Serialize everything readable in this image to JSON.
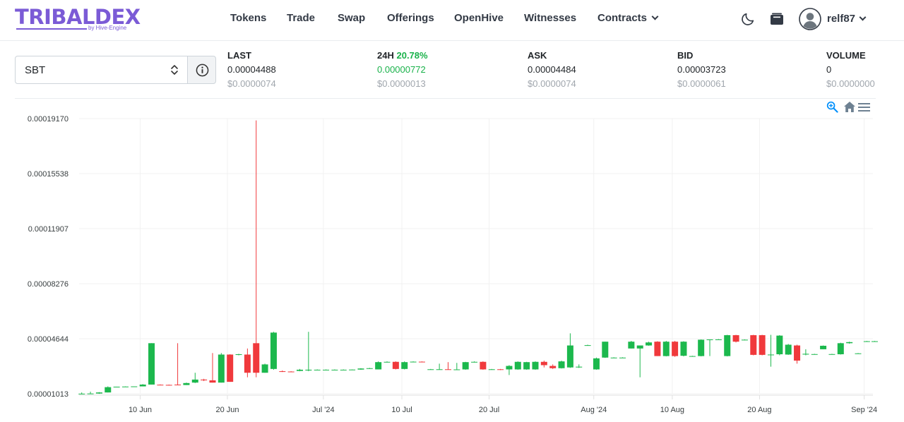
{
  "brand": {
    "name": "TRIBALDEX",
    "sub": "by Hive-Engine",
    "color": "#7b5bd6"
  },
  "nav": {
    "items": [
      "Tokens",
      "Trade",
      "Swap",
      "Offerings",
      "OpenHive",
      "Witnesses",
      "Contracts"
    ],
    "username": "relf87",
    "icons": [
      "moon-icon",
      "wallet-icon",
      "avatar-icon",
      "chevron-down-icon"
    ]
  },
  "token_select": {
    "value": "SBT"
  },
  "stats": {
    "last": {
      "label": "LAST",
      "value": "0.00004488",
      "usd": "$0.0000074"
    },
    "change": {
      "label": "24H",
      "pct": "20.78%",
      "value": "0.00000772",
      "usd": "$0.0000013"
    },
    "ask": {
      "label": "ASK",
      "value": "0.00004484",
      "usd": "$0.0000074"
    },
    "bid": {
      "label": "BID",
      "value": "0.00003723",
      "usd": "$0.0000061"
    },
    "volume": {
      "label": "VOLUME",
      "value": "0",
      "usd": "$0.0000000"
    }
  },
  "colors": {
    "up": "#1cb84d",
    "down": "#f0393c",
    "positive_text": "#19b24a",
    "grid": "#f1f1f1"
  },
  "chart_data": {
    "type": "candlestick",
    "y_ticks": [
      "0.00019170",
      "0.00015538",
      "0.00011907",
      "0.00008276",
      "0.00004644",
      "0.00001013"
    ],
    "y_tick_values": [
      0.0001917,
      0.00015538,
      0.00011907,
      8.276e-05,
      4.644e-05,
      1.013e-05
    ],
    "ylim": [
      1.013e-05,
      0.0001917
    ],
    "x_ticks": [
      {
        "label": "10 Jun",
        "day": 10
      },
      {
        "label": "20 Jun",
        "day": 20
      },
      {
        "label": "Jul '24",
        "day": 31
      },
      {
        "label": "10 Jul",
        "day": 40
      },
      {
        "label": "20 Jul",
        "day": 50
      },
      {
        "label": "Aug '24",
        "day": 62
      },
      {
        "label": "10 Aug",
        "day": 71
      },
      {
        "label": "20 Aug",
        "day": 81
      },
      {
        "label": "Sep '24",
        "day": 93
      }
    ],
    "day_range": [
      3,
      94
    ],
    "candles": [
      {
        "day": 3.3,
        "o": 1e-05,
        "h": 1.1e-05,
        "l": 1e-05,
        "c": 1.02e-05
      },
      {
        "day": 4.3,
        "o": 1.01e-05,
        "h": 1.15e-05,
        "l": 1.01e-05,
        "c": 1.03e-05
      },
      {
        "day": 5.3,
        "o": 1.03e-05,
        "h": 1.12e-05,
        "l": 1.01e-05,
        "c": 1.1e-05
      },
      {
        "day": 6.3,
        "o": 1.1e-05,
        "h": 1.5e-05,
        "l": 1.1e-05,
        "c": 1.45e-05
      },
      {
        "day": 7.3,
        "o": 1.45e-05,
        "h": 1.48e-05,
        "l": 1.45e-05,
        "c": 1.48e-05
      },
      {
        "day": 8.3,
        "o": 1.48e-05,
        "h": 1.5e-05,
        "l": 1.47e-05,
        "c": 1.49e-05
      },
      {
        "day": 9.3,
        "o": 1.49e-05,
        "h": 1.5e-05,
        "l": 1.48e-05,
        "c": 1.5e-05
      },
      {
        "day": 10.3,
        "o": 1.5e-05,
        "h": 1.65e-05,
        "l": 1.5e-05,
        "c": 1.62e-05
      },
      {
        "day": 11.3,
        "o": 1.62e-05,
        "h": 4.35e-05,
        "l": 1.62e-05,
        "c": 4.35e-05
      },
      {
        "day": 12.3,
        "o": 1.61e-05,
        "h": 1.63e-05,
        "l": 1.58e-05,
        "c": 1.6e-05
      },
      {
        "day": 13.3,
        "o": 1.6e-05,
        "h": 1.62e-05,
        "l": 1.58e-05,
        "c": 1.59e-05
      },
      {
        "day": 14.3,
        "o": 1.62e-05,
        "h": 4.35e-05,
        "l": 1.58e-05,
        "c": 1.59e-05
      },
      {
        "day": 15.3,
        "o": 1.59e-05,
        "h": 1.75e-05,
        "l": 1.59e-05,
        "c": 1.72e-05
      },
      {
        "day": 16.3,
        "o": 1.75e-05,
        "h": 2.4e-05,
        "l": 1.72e-05,
        "c": 1.95e-05
      },
      {
        "day": 17.3,
        "o": 1.95e-05,
        "h": 2e-05,
        "l": 1.85e-05,
        "c": 1.9e-05
      },
      {
        "day": 18.3,
        "o": 1.9e-05,
        "h": 3.7e-05,
        "l": 1.75e-05,
        "c": 1.75e-05
      },
      {
        "day": 19.3,
        "o": 1.75e-05,
        "h": 3.7e-05,
        "l": 1.75e-05,
        "c": 3.6e-05
      },
      {
        "day": 20.3,
        "o": 3.6e-05,
        "h": 3.62e-05,
        "l": 1.8e-05,
        "c": 1.8e-05
      },
      {
        "day": 21.3,
        "o": 3.6e-05,
        "h": 3.65e-05,
        "l": 3.55e-05,
        "c": 3.62e-05
      },
      {
        "day": 22.3,
        "o": 3.6e-05,
        "h": 4e-05,
        "l": 2.1e-05,
        "c": 2.4e-05
      },
      {
        "day": 23.3,
        "o": 4.35e-05,
        "h": 0.0001905,
        "l": 2.1e-05,
        "c": 2.4e-05
      },
      {
        "day": 24.3,
        "o": 2.4e-05,
        "h": 3e-05,
        "l": 2.4e-05,
        "c": 2.95e-05
      },
      {
        "day": 25.3,
        "o": 2.65e-05,
        "h": 5.1e-05,
        "l": 2.6e-05,
        "c": 5.05e-05
      },
      {
        "day": 26.3,
        "o": 2.5e-05,
        "h": 2.55e-05,
        "l": 2.45e-05,
        "c": 2.48e-05
      },
      {
        "day": 27.3,
        "o": 2.48e-05,
        "h": 2.5e-05,
        "l": 2.45e-05,
        "c": 2.47e-05
      },
      {
        "day": 28.3,
        "o": 2.52e-05,
        "h": 2.65e-05,
        "l": 2.5e-05,
        "c": 2.6e-05
      },
      {
        "day": 29.3,
        "o": 2.55e-05,
        "h": 5.1e-05,
        "l": 2.5e-05,
        "c": 2.6e-05
      },
      {
        "day": 30.3,
        "o": 2.6e-05,
        "h": 2.62e-05,
        "l": 2.58e-05,
        "c": 2.6e-05
      },
      {
        "day": 31.3,
        "o": 2.6e-05,
        "h": 2.62e-05,
        "l": 2.58e-05,
        "c": 2.6e-05
      },
      {
        "day": 32.3,
        "o": 2.6e-05,
        "h": 2.62e-05,
        "l": 2.58e-05,
        "c": 2.6e-05
      },
      {
        "day": 33.3,
        "o": 2.6e-05,
        "h": 2.62e-05,
        "l": 2.58e-05,
        "c": 2.6e-05
      },
      {
        "day": 34.3,
        "o": 2.6e-05,
        "h": 2.62e-05,
        "l": 2.58e-05,
        "c": 2.61e-05
      },
      {
        "day": 35.3,
        "o": 2.61e-05,
        "h": 2.7e-05,
        "l": 2.6e-05,
        "c": 2.68e-05
      },
      {
        "day": 36.3,
        "o": 2.68e-05,
        "h": 2.72e-05,
        "l": 2.65e-05,
        "c": 2.7e-05
      },
      {
        "day": 37.3,
        "o": 2.62e-05,
        "h": 3.15e-05,
        "l": 2.62e-05,
        "c": 3.1e-05
      },
      {
        "day": 38.3,
        "o": 3.12e-05,
        "h": 3.15e-05,
        "l": 3.08e-05,
        "c": 3.12e-05
      },
      {
        "day": 39.3,
        "o": 3.12e-05,
        "h": 3.15e-05,
        "l": 2.62e-05,
        "c": 2.65e-05
      },
      {
        "day": 40.3,
        "o": 2.65e-05,
        "h": 3.15e-05,
        "l": 2.62e-05,
        "c": 3.1e-05
      },
      {
        "day": 41.3,
        "o": 3.12e-05,
        "h": 3.15e-05,
        "l": 3.1e-05,
        "c": 3.13e-05
      },
      {
        "day": 42.3,
        "o": 3.13e-05,
        "h": 3.15e-05,
        "l": 3.1e-05,
        "c": 3.12e-05
      },
      {
        "day": 43.3,
        "o": 2.62e-05,
        "h": 2.65e-05,
        "l": 2.6e-05,
        "c": 2.63e-05
      },
      {
        "day": 44.3,
        "o": 2.63e-05,
        "h": 3e-05,
        "l": 2.6e-05,
        "c": 2.63e-05
      },
      {
        "day": 45.3,
        "o": 2.63e-05,
        "h": 3.1e-05,
        "l": 2.6e-05,
        "c": 2.62e-05
      },
      {
        "day": 46.3,
        "o": 2.62e-05,
        "h": 3.05e-05,
        "l": 2.6e-05,
        "c": 2.62e-05
      },
      {
        "day": 47.3,
        "o": 2.62e-05,
        "h": 3.12e-05,
        "l": 2.6e-05,
        "c": 3.1e-05
      },
      {
        "day": 48.3,
        "o": 3.1e-05,
        "h": 3.15e-05,
        "l": 3.08e-05,
        "c": 3.12e-05
      },
      {
        "day": 49.3,
        "o": 3.12e-05,
        "h": 3.15e-05,
        "l": 2.6e-05,
        "c": 2.62e-05
      },
      {
        "day": 50.3,
        "o": 2.62e-05,
        "h": 2.65e-05,
        "l": 2.6e-05,
        "c": 2.63e-05
      },
      {
        "day": 51.3,
        "o": 2.63e-05,
        "h": 2.65e-05,
        "l": 2.58e-05,
        "c": 2.62e-05
      },
      {
        "day": 52.3,
        "o": 2.62e-05,
        "h": 2.9e-05,
        "l": 2.25e-05,
        "c": 2.85e-05
      },
      {
        "day": 53.3,
        "o": 2.62e-05,
        "h": 3.15e-05,
        "l": 2.6e-05,
        "c": 3.12e-05
      },
      {
        "day": 54.3,
        "o": 2.62e-05,
        "h": 3.12e-05,
        "l": 2.6e-05,
        "c": 3.1e-05
      },
      {
        "day": 55.3,
        "o": 2.62e-05,
        "h": 3.15e-05,
        "l": 2.6e-05,
        "c": 3.12e-05
      },
      {
        "day": 56.3,
        "o": 3.12e-05,
        "h": 3.2e-05,
        "l": 2.75e-05,
        "c": 2.9e-05
      },
      {
        "day": 57.3,
        "o": 2.85e-05,
        "h": 2.95e-05,
        "l": 2.65e-05,
        "c": 2.7e-05
      },
      {
        "day": 58.3,
        "o": 2.7e-05,
        "h": 3.2e-05,
        "l": 2.68e-05,
        "c": 3.15e-05
      },
      {
        "day": 59.3,
        "o": 2.75e-05,
        "h": 5e-05,
        "l": 2.72e-05,
        "c": 4.2e-05
      },
      {
        "day": 60.3,
        "o": 2.75e-05,
        "h": 2.95e-05,
        "l": 2.72e-05,
        "c": 2.8e-05
      },
      {
        "day": 61.3,
        "o": 4.2e-05,
        "h": 4.25e-05,
        "l": 4.18e-05,
        "c": 4.22e-05
      },
      {
        "day": 62.3,
        "o": 2.62e-05,
        "h": 3.4e-05,
        "l": 2.6e-05,
        "c": 3.35e-05
      },
      {
        "day": 63.3,
        "o": 3.4e-05,
        "h": 4.45e-05,
        "l": 3.38e-05,
        "c": 4.45e-05
      },
      {
        "day": 64.3,
        "o": 3.4e-05,
        "h": 3.42e-05,
        "l": 3.38e-05,
        "c": 3.4e-05
      },
      {
        "day": 65.3,
        "o": 3.4e-05,
        "h": 3.42e-05,
        "l": 3.38e-05,
        "c": 3.4e-05
      },
      {
        "day": 66.3,
        "o": 4e-05,
        "h": 4.5e-05,
        "l": 4e-05,
        "c": 4.45e-05
      },
      {
        "day": 67.3,
        "o": 4e-05,
        "h": 4.2e-05,
        "l": 2.1e-05,
        "c": 4.2e-05
      },
      {
        "day": 68.3,
        "o": 4.2e-05,
        "h": 4.45e-05,
        "l": 4.18e-05,
        "c": 4.4e-05
      },
      {
        "day": 69.3,
        "o": 4.45e-05,
        "h": 4.48e-05,
        "l": 3.5e-05,
        "c": 3.5e-05
      },
      {
        "day": 70.3,
        "o": 3.5e-05,
        "h": 4.5e-05,
        "l": 3.48e-05,
        "c": 4.45e-05
      },
      {
        "day": 71.3,
        "o": 4.45e-05,
        "h": 4.5e-05,
        "l": 3.45e-05,
        "c": 3.5e-05
      },
      {
        "day": 72.3,
        "o": 3.52e-05,
        "h": 4.48e-05,
        "l": 3.48e-05,
        "c": 4.45e-05
      },
      {
        "day": 73.3,
        "o": 3.5e-05,
        "h": 3.52e-05,
        "l": 3.48e-05,
        "c": 3.5e-05
      },
      {
        "day": 74.3,
        "o": 3.5e-05,
        "h": 4.6e-05,
        "l": 3.48e-05,
        "c": 4.58e-05
      },
      {
        "day": 75.3,
        "o": 4.58e-05,
        "h": 4.6e-05,
        "l": 3.5e-05,
        "c": 4.6e-05
      },
      {
        "day": 76.3,
        "o": 4.6e-05,
        "h": 4.62e-05,
        "l": 4.58e-05,
        "c": 4.6e-05
      },
      {
        "day": 77.3,
        "o": 3.5e-05,
        "h": 4.9e-05,
        "l": 3.48e-05,
        "c": 4.88e-05
      },
      {
        "day": 78.3,
        "o": 4.88e-05,
        "h": 4.9e-05,
        "l": 4.4e-05,
        "c": 4.45e-05
      },
      {
        "day": 79.3,
        "o": 4.58e-05,
        "h": 4.6e-05,
        "l": 4.56e-05,
        "c": 4.58e-05
      },
      {
        "day": 80.3,
        "o": 4.88e-05,
        "h": 4.9e-05,
        "l": 3.55e-05,
        "c": 3.58e-05
      },
      {
        "day": 81.3,
        "o": 4.88e-05,
        "h": 4.9e-05,
        "l": 3.55e-05,
        "c": 3.58e-05
      },
      {
        "day": 82.3,
        "o": 3.58e-05,
        "h": 4.9e-05,
        "l": 2.8e-05,
        "c": 3.6e-05
      },
      {
        "day": 83.3,
        "o": 3.62e-05,
        "h": 4.88e-05,
        "l": 3.55e-05,
        "c": 4.85e-05
      },
      {
        "day": 84.3,
        "o": 3.6e-05,
        "h": 4.3e-05,
        "l": 3.58e-05,
        "c": 4.25e-05
      },
      {
        "day": 85.3,
        "o": 4.2e-05,
        "h": 4.25e-05,
        "l": 3e-05,
        "c": 3.2e-05
      },
      {
        "day": 86.3,
        "o": 3.6e-05,
        "h": 3.95e-05,
        "l": 3.55e-05,
        "c": 3.65e-05
      },
      {
        "day": 87.3,
        "o": 3.62e-05,
        "h": 3.65e-05,
        "l": 3.6e-05,
        "c": 3.63e-05
      },
      {
        "day": 88.3,
        "o": 3.95e-05,
        "h": 4.2e-05,
        "l": 3.95e-05,
        "c": 4.18e-05
      },
      {
        "day": 89.3,
        "o": 3.62e-05,
        "h": 3.65e-05,
        "l": 3.6e-05,
        "c": 3.63e-05
      },
      {
        "day": 90.3,
        "o": 3.62e-05,
        "h": 4.38e-05,
        "l": 3.6e-05,
        "c": 4.35e-05
      },
      {
        "day": 91.3,
        "o": 4.35e-05,
        "h": 4.45e-05,
        "l": 4.32e-05,
        "c": 4.42e-05
      },
      {
        "day": 92.3,
        "o": 3.68e-05,
        "h": 3.7e-05,
        "l": 3.66e-05,
        "c": 3.68e-05
      },
      {
        "day": 93.3,
        "o": 4.48e-05,
        "h": 4.5e-05,
        "l": 4.46e-05,
        "c": 4.48e-05
      },
      {
        "day": 94.2,
        "o": 4.48e-05,
        "h": 4.5e-05,
        "l": 4.46e-05,
        "c": 4.48e-05
      }
    ]
  }
}
